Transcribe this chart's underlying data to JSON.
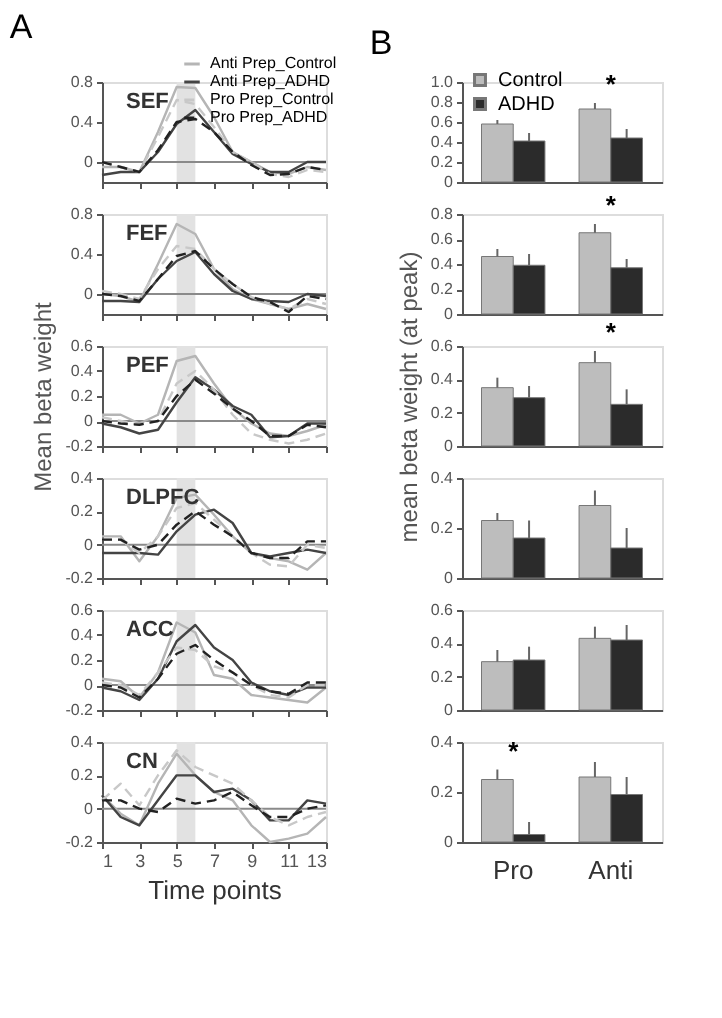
{
  "chart_data": [
    {
      "type": "line",
      "title": "A",
      "x": [
        1,
        2,
        3,
        4,
        5,
        6,
        7,
        8,
        9,
        10,
        11,
        12,
        13
      ],
      "xlim": [
        1,
        13
      ],
      "xticks": [
        1,
        3,
        5,
        7,
        9,
        11,
        13
      ],
      "ylim": [
        -0.2,
        0.8
      ],
      "yticks": [
        0,
        0.4,
        0.8
      ],
      "tick_labels": "y",
      "legend": "top right",
      "annotations": [
        "SEF"
      ],
      "bands": [
        {
          "axis": "x",
          "from": 5,
          "to": 6,
          "color": "#e2e2e2"
        }
      ],
      "ref_lines": [
        {
          "axis": "y",
          "value": 0,
          "color": "#8a8a8a"
        }
      ],
      "series": [
        {
          "name": "Anti Prep_Control",
          "color": "#b5b5b5",
          "line_style": "solid",
          "values": [
            -0.05,
            -0.05,
            -0.1,
            0.3,
            0.75,
            0.74,
            0.45,
            0.1,
            0.0,
            -0.1,
            -0.12,
            -0.05,
            -0.08
          ]
        },
        {
          "name": "Anti Prep_ADHD",
          "color": "#444444",
          "line_style": "solid",
          "values": [
            -0.13,
            -0.1,
            -0.1,
            0.1,
            0.38,
            0.52,
            0.3,
            0.08,
            -0.02,
            -0.1,
            -0.1,
            0.0,
            0.0
          ]
        },
        {
          "name": "Pro Prep_Control",
          "color": "#c8c8c8",
          "line_style": "dashed",
          "values": [
            0.0,
            -0.05,
            -0.1,
            0.25,
            0.62,
            0.58,
            0.35,
            0.1,
            0.0,
            -0.12,
            -0.15,
            -0.08,
            -0.1
          ]
        },
        {
          "name": "Pro Prep_ADHD",
          "color": "#222222",
          "line_style": "dashed",
          "values": [
            0.0,
            -0.05,
            -0.1,
            0.12,
            0.4,
            0.43,
            0.3,
            0.1,
            -0.03,
            -0.13,
            -0.12,
            -0.05,
            -0.08
          ]
        }
      ]
    },
    {
      "type": "line",
      "x": [
        1,
        2,
        3,
        4,
        5,
        6,
        7,
        8,
        9,
        10,
        11,
        12,
        13
      ],
      "xlim": [
        1,
        13
      ],
      "xticks": [
        1,
        3,
        5,
        7,
        9,
        11,
        13
      ],
      "ylim": [
        -0.2,
        0.8
      ],
      "yticks": [
        0,
        0.4,
        0.8
      ],
      "tick_labels": "y",
      "annotations": [
        "FEF"
      ],
      "bands": [
        {
          "axis": "x",
          "from": 5,
          "to": 6,
          "color": "#e2e2e2"
        }
      ],
      "ref_lines": [
        {
          "axis": "y",
          "value": 0,
          "color": "#8a8a8a"
        }
      ],
      "series": [
        {
          "color": "#b5b5b5",
          "line_style": "solid",
          "values": [
            0.0,
            -0.02,
            -0.08,
            0.3,
            0.7,
            0.6,
            0.25,
            0.05,
            -0.05,
            -0.1,
            -0.15,
            -0.1,
            -0.15
          ]
        },
        {
          "color": "#444444",
          "line_style": "solid",
          "values": [
            -0.07,
            -0.07,
            -0.08,
            0.15,
            0.33,
            0.42,
            0.2,
            0.03,
            -0.05,
            -0.07,
            -0.08,
            0.0,
            -0.02
          ]
        },
        {
          "color": "#c8c8c8",
          "line_style": "dashed",
          "values": [
            0.03,
            0.0,
            -0.05,
            0.25,
            0.48,
            0.45,
            0.25,
            0.1,
            -0.03,
            -0.1,
            -0.15,
            -0.05,
            -0.1
          ]
        },
        {
          "color": "#222222",
          "line_style": "dashed",
          "values": [
            0.0,
            -0.02,
            -0.07,
            0.15,
            0.38,
            0.43,
            0.25,
            0.1,
            -0.03,
            -0.08,
            -0.18,
            -0.02,
            -0.05
          ]
        }
      ]
    },
    {
      "type": "line",
      "ylabel": "Mean beta weight",
      "x": [
        1,
        2,
        3,
        4,
        5,
        6,
        7,
        8,
        9,
        10,
        11,
        12,
        13
      ],
      "xlim": [
        1,
        13
      ],
      "xticks": [
        1,
        3,
        5,
        7,
        9,
        11,
        13
      ],
      "ylim": [
        -0.2,
        0.6
      ],
      "yticks": [
        -0.2,
        0,
        0.2,
        0.4,
        0.6
      ],
      "tick_labels": "y",
      "annotations": [
        "PEF"
      ],
      "bands": [
        {
          "axis": "x",
          "from": 5,
          "to": 6,
          "color": "#e2e2e2"
        }
      ],
      "ref_lines": [
        {
          "axis": "y",
          "value": 0,
          "color": "#8a8a8a"
        }
      ],
      "series": [
        {
          "color": "#b5b5b5",
          "line_style": "solid",
          "values": [
            0.05,
            0.05,
            -0.02,
            0.05,
            0.48,
            0.52,
            0.3,
            0.1,
            -0.02,
            -0.1,
            -0.12,
            -0.08,
            -0.03
          ]
        },
        {
          "color": "#444444",
          "line_style": "solid",
          "values": [
            -0.02,
            -0.05,
            -0.1,
            -0.07,
            0.15,
            0.35,
            0.25,
            0.12,
            0.05,
            -0.13,
            -0.12,
            -0.02,
            -0.02
          ]
        },
        {
          "color": "#c8c8c8",
          "line_style": "dashed",
          "values": [
            0.03,
            0.0,
            -0.03,
            0.0,
            0.3,
            0.4,
            0.25,
            0.05,
            -0.1,
            -0.15,
            -0.18,
            -0.15,
            -0.1
          ]
        },
        {
          "color": "#222222",
          "line_style": "dashed",
          "values": [
            0.0,
            -0.02,
            -0.03,
            0.0,
            0.2,
            0.33,
            0.22,
            0.1,
            0.0,
            -0.12,
            -0.12,
            -0.03,
            -0.05
          ]
        }
      ]
    },
    {
      "type": "line",
      "x": [
        1,
        2,
        3,
        4,
        5,
        6,
        7,
        8,
        9,
        10,
        11,
        12,
        13
      ],
      "xlim": [
        1,
        13
      ],
      "xticks": [
        1,
        3,
        5,
        7,
        9,
        11,
        13
      ],
      "ylim": [
        -0.2,
        0.4
      ],
      "yticks": [
        -0.2,
        0,
        0.2,
        0.4
      ],
      "tick_labels": "y",
      "annotations": [
        "DLPFC"
      ],
      "bands": [
        {
          "axis": "x",
          "from": 5,
          "to": 6,
          "color": "#e2e2e2"
        }
      ],
      "ref_lines": [
        {
          "axis": "y",
          "value": 0,
          "color": "#8a8a8a"
        }
      ],
      "series": [
        {
          "color": "#b5b5b5",
          "line_style": "solid",
          "values": [
            0.05,
            0.05,
            -0.1,
            0.05,
            0.28,
            0.3,
            0.18,
            0.05,
            -0.05,
            -0.08,
            -0.1,
            -0.15,
            -0.05
          ]
        },
        {
          "color": "#444444",
          "line_style": "solid",
          "values": [
            -0.05,
            -0.05,
            -0.05,
            -0.06,
            0.08,
            0.18,
            0.21,
            0.13,
            -0.05,
            -0.07,
            -0.05,
            -0.03,
            -0.05
          ]
        },
        {
          "color": "#c8c8c8",
          "line_style": "dashed",
          "values": [
            0.03,
            0.03,
            -0.05,
            0.05,
            0.22,
            0.25,
            0.15,
            0.05,
            -0.05,
            -0.12,
            -0.13,
            0.0,
            -0.02
          ]
        },
        {
          "color": "#222222",
          "line_style": "dashed",
          "values": [
            0.03,
            0.03,
            -0.03,
            0.0,
            0.12,
            0.2,
            0.12,
            0.05,
            -0.05,
            -0.08,
            -0.08,
            0.02,
            0.02
          ]
        }
      ]
    },
    {
      "type": "line",
      "x": [
        1,
        2,
        3,
        4,
        5,
        6,
        7,
        8,
        9,
        10,
        11,
        12,
        13
      ],
      "xlim": [
        1,
        13
      ],
      "xticks": [
        1,
        3,
        5,
        7,
        9,
        11,
        13
      ],
      "ylim": [
        -0.2,
        0.6
      ],
      "yticks": [
        -0.2,
        0,
        0.2,
        0.4,
        0.6
      ],
      "tick_labels": "y",
      "annotations": [
        "ACC"
      ],
      "bands": [
        {
          "axis": "x",
          "from": 5,
          "to": 6,
          "color": "#e2e2e2"
        }
      ],
      "ref_lines": [
        {
          "axis": "y",
          "value": 0,
          "color": "#8a8a8a"
        }
      ],
      "series": [
        {
          "color": "#b5b5b5",
          "line_style": "solid",
          "values": [
            0.05,
            0.03,
            -0.1,
            0.1,
            0.5,
            0.42,
            0.08,
            0.05,
            -0.08,
            -0.1,
            -0.12,
            -0.14,
            -0.02
          ]
        },
        {
          "color": "#444444",
          "line_style": "solid",
          "values": [
            -0.02,
            -0.05,
            -0.12,
            0.05,
            0.35,
            0.48,
            0.3,
            0.2,
            0.02,
            -0.05,
            -0.08,
            -0.02,
            -0.02
          ]
        },
        {
          "color": "#c8c8c8",
          "line_style": "dashed",
          "values": [
            0.02,
            0.0,
            -0.08,
            0.1,
            0.3,
            0.28,
            0.15,
            0.1,
            0.0,
            -0.08,
            -0.1,
            0.0,
            0.0
          ]
        },
        {
          "color": "#222222",
          "line_style": "dashed",
          "values": [
            0.0,
            -0.02,
            -0.1,
            0.05,
            0.25,
            0.32,
            0.2,
            0.1,
            0.0,
            -0.05,
            -0.07,
            0.02,
            0.02
          ]
        }
      ]
    },
    {
      "type": "line",
      "xlabel": "Time points",
      "x": [
        1,
        2,
        3,
        4,
        5,
        6,
        7,
        8,
        9,
        10,
        11,
        12,
        13
      ],
      "xlim": [
        1,
        13
      ],
      "xticks": [
        1,
        3,
        5,
        7,
        9,
        11,
        13
      ],
      "ylim": [
        -0.2,
        0.4
      ],
      "yticks": [
        -0.2,
        0,
        0.2,
        0.4
      ],
      "annotations": [
        "CN"
      ],
      "bands": [
        {
          "axis": "x",
          "from": 5,
          "to": 6,
          "color": "#e2e2e2"
        }
      ],
      "ref_lines": [
        {
          "axis": "y",
          "value": 0,
          "color": "#8a8a8a"
        }
      ],
      "series": [
        {
          "color": "#b5b5b5",
          "line_style": "solid",
          "values": [
            0.08,
            -0.03,
            -0.1,
            0.15,
            0.33,
            0.2,
            0.1,
            0.05,
            -0.1,
            -0.2,
            -0.18,
            -0.15,
            -0.05
          ]
        },
        {
          "color": "#444444",
          "line_style": "solid",
          "values": [
            0.08,
            -0.05,
            -0.1,
            0.05,
            0.2,
            0.2,
            0.1,
            0.12,
            0.05,
            -0.07,
            -0.07,
            0.05,
            0.03
          ]
        },
        {
          "color": "#c8c8c8",
          "line_style": "dashed",
          "values": [
            0.05,
            0.15,
            0.02,
            0.2,
            0.35,
            0.25,
            0.2,
            0.15,
            0.05,
            -0.05,
            -0.1,
            -0.05,
            -0.02
          ]
        },
        {
          "color": "#222222",
          "line_style": "dashed",
          "values": [
            0.05,
            0.05,
            0.0,
            -0.02,
            0.06,
            0.03,
            0.05,
            0.1,
            0.02,
            -0.05,
            -0.05,
            0.0,
            0.02
          ]
        }
      ]
    },
    {
      "type": "bar",
      "title": "B",
      "categories": [
        null,
        null
      ],
      "ylim": [
        0,
        1.0
      ],
      "yticks": [
        0,
        0.2,
        0.4,
        0.6,
        0.8,
        {
          "value": 1,
          "label": "1.0"
        }
      ],
      "legend": "top left",
      "annotations": [
        "*"
      ],
      "series": [
        {
          "name": "Control",
          "color": "#bdbdbd",
          "values": [
            0.58,
            0.73
          ],
          "errors": [
            [
              0.58,
              0.62
            ],
            [
              0.73,
              0.79
            ]
          ]
        },
        {
          "name": "ADHD",
          "color": "#2b2b2b",
          "values": [
            0.41,
            0.44
          ],
          "errors": [
            [
              0.41,
              0.49
            ],
            [
              0.44,
              0.53
            ]
          ]
        }
      ]
    },
    {
      "type": "bar",
      "categories": [
        null,
        null
      ],
      "ylim": [
        0,
        0.8
      ],
      "yticks": [
        0,
        0.2,
        0.4,
        0.6,
        0.8
      ],
      "annotations": [
        "*"
      ],
      "series": [
        {
          "color": "#bdbdbd",
          "values": [
            0.46,
            0.65
          ],
          "errors": [
            [
              0.46,
              0.52
            ],
            [
              0.65,
              0.72
            ]
          ]
        },
        {
          "color": "#2b2b2b",
          "values": [
            0.39,
            0.37
          ],
          "errors": [
            [
              0.39,
              0.48
            ],
            [
              0.37,
              0.44
            ]
          ]
        }
      ]
    },
    {
      "type": "bar",
      "ylabel": "mean beta weight (at peak)",
      "categories": [
        null,
        null
      ],
      "ylim": [
        0,
        0.6
      ],
      "yticks": [
        0,
        0.2,
        0.4,
        0.6
      ],
      "annotations": [
        "*"
      ],
      "series": [
        {
          "color": "#bdbdbd",
          "values": [
            0.35,
            0.5
          ],
          "errors": [
            [
              0.35,
              0.41
            ],
            [
              0.5,
              0.57
            ]
          ]
        },
        {
          "color": "#2b2b2b",
          "values": [
            0.29,
            0.25
          ],
          "errors": [
            [
              0.29,
              0.36
            ],
            [
              0.25,
              0.34
            ]
          ]
        }
      ]
    },
    {
      "type": "bar",
      "categories": [
        null,
        null
      ],
      "ylim": [
        0,
        0.4
      ],
      "yticks": [
        0,
        0.2,
        0.4
      ],
      "series": [
        {
          "color": "#bdbdbd",
          "values": [
            0.23,
            0.29
          ],
          "errors": [
            [
              0.23,
              0.26
            ],
            [
              0.29,
              0.35
            ]
          ]
        },
        {
          "color": "#2b2b2b",
          "values": [
            0.16,
            0.12
          ],
          "errors": [
            [
              0.16,
              0.23
            ],
            [
              0.12,
              0.2
            ]
          ]
        }
      ]
    },
    {
      "type": "bar",
      "categories": [
        null,
        null
      ],
      "ylim": [
        0,
        0.6
      ],
      "yticks": [
        0,
        0.2,
        0.4,
        0.6
      ],
      "series": [
        {
          "color": "#bdbdbd",
          "values": [
            0.29,
            0.43
          ],
          "errors": [
            [
              0.29,
              0.36
            ],
            [
              0.43,
              0.5
            ]
          ]
        },
        {
          "color": "#2b2b2b",
          "values": [
            0.3,
            0.42
          ],
          "errors": [
            [
              0.3,
              0.38
            ],
            [
              0.42,
              0.51
            ]
          ]
        }
      ]
    },
    {
      "type": "bar",
      "categories": [
        "Pro",
        "Anti"
      ],
      "ylim": [
        0,
        0.4
      ],
      "yticks": [
        0,
        0.2,
        0.4
      ],
      "annotations": [
        "*"
      ],
      "series": [
        {
          "color": "#bdbdbd",
          "values": [
            0.25,
            0.26
          ],
          "errors": [
            [
              0.25,
              0.29
            ],
            [
              0.26,
              0.32
            ]
          ]
        },
        {
          "color": "#2b2b2b",
          "values": [
            0.03,
            0.19
          ],
          "errors": [
            [
              0.03,
              0.08
            ],
            [
              0.19,
              0.26
            ]
          ]
        }
      ]
    }
  ]
}
